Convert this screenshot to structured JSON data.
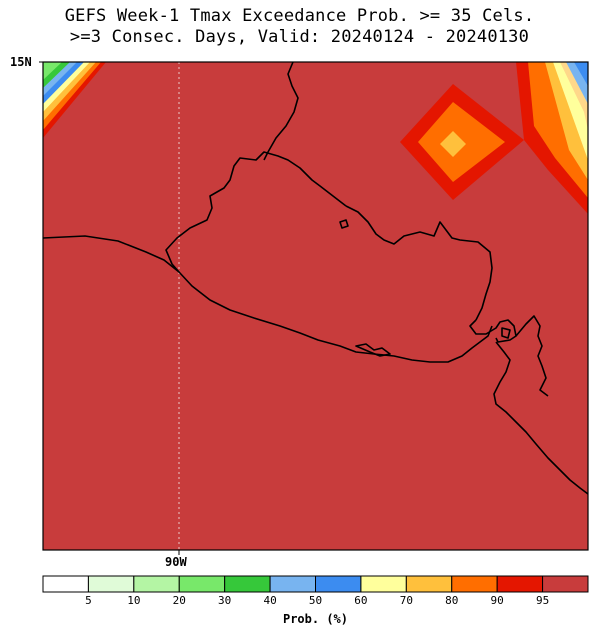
{
  "title": {
    "line1": "GEFS Week-1 Tmax Exceedance Prob. >= 35 Cels.",
    "line2": ">=3 Consec. Days, Valid: 20240124 - 20240130"
  },
  "axes": {
    "lat_label": "15N",
    "lon_label": "90W"
  },
  "colorbar": {
    "unit_label": "Prob. (%)",
    "ticks": [
      "5",
      "10",
      "20",
      "30",
      "40",
      "50",
      "60",
      "70",
      "80",
      "90",
      "95"
    ],
    "colors": [
      "#ffffff",
      "#e0fbd8",
      "#b4f5a4",
      "#78e86a",
      "#36c83a",
      "#78b4f0",
      "#3c8cf0",
      "#ffff9c",
      "#ffc03c",
      "#ff6e00",
      "#e41600",
      "#c83c3c"
    ]
  },
  "map": {
    "fill_color": "#c83c3c",
    "features": [
      "probability-field",
      "coastline",
      "country-borders",
      "90W-meridian"
    ]
  }
}
